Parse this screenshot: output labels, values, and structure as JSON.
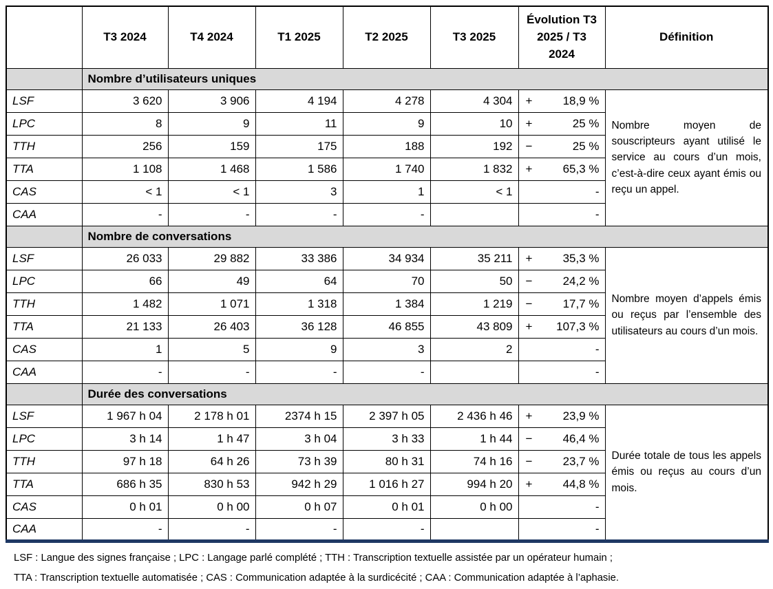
{
  "colors": {
    "band": "#D9D9D9",
    "rule": "#1F3864"
  },
  "header": {
    "columns": [
      "",
      "T3 2024",
      "T4 2024",
      "T1 2025",
      "T2 2025",
      "T3 2025",
      "Évolution T3 2025 / T3 2024",
      "Définition"
    ]
  },
  "sections": [
    {
      "title": "Nombre d’utilisateurs uniques",
      "definition": "Nombre moyen de souscripteurs ayant utilisé le service au cours d’un mois, c’est-à-dire ceux ayant émis ou reçu un appel.",
      "rows": [
        {
          "label": "LSF",
          "values": [
            "3 620",
            "3 906",
            "4 194",
            "4 278",
            "4 304"
          ],
          "evolution": {
            "sign": "+",
            "value": "18,9 %"
          }
        },
        {
          "label": "LPC",
          "values": [
            "8",
            "9",
            "11",
            "9",
            "10"
          ],
          "evolution": {
            "sign": "+",
            "value": "25 %"
          }
        },
        {
          "label": "TTH",
          "values": [
            "256",
            "159",
            "175",
            "188",
            "192"
          ],
          "evolution": {
            "sign": "−",
            "value": "25 %"
          }
        },
        {
          "label": "TTA",
          "values": [
            "1 108",
            "1 468",
            "1 586",
            "1 740",
            "1 832"
          ],
          "evolution": {
            "sign": "+",
            "value": "65,3 %"
          }
        },
        {
          "label": "CAS",
          "values": [
            "< 1",
            "< 1",
            "3",
            "1",
            "< 1"
          ],
          "evolution": {
            "sign": "",
            "value": "-"
          }
        },
        {
          "label": "CAA",
          "values": [
            "-",
            "-",
            "-",
            "-",
            ""
          ],
          "evolution": {
            "sign": "",
            "value": "-"
          }
        }
      ]
    },
    {
      "title": "Nombre de conversations",
      "definition": "Nombre moyen d’appels émis ou reçus par l’ensemble des utilisateurs au cours d’un mois.",
      "rows": [
        {
          "label": "LSF",
          "values": [
            "26 033",
            "29 882",
            "33 386",
            "34 934",
            "35 211"
          ],
          "evolution": {
            "sign": "+",
            "value": "35,3 %"
          }
        },
        {
          "label": "LPC",
          "values": [
            "66",
            "49",
            "64",
            "70",
            "50"
          ],
          "evolution": {
            "sign": "−",
            "value": "24,2 %"
          }
        },
        {
          "label": "TTH",
          "values": [
            "1 482",
            "1 071",
            "1 318",
            "1 384",
            "1 219"
          ],
          "evolution": {
            "sign": "−",
            "value": "17,7 %"
          }
        },
        {
          "label": "TTA",
          "values": [
            "21 133",
            "26 403",
            "36 128",
            "46 855",
            "43 809"
          ],
          "evolution": {
            "sign": "+",
            "value": "107,3 %"
          }
        },
        {
          "label": "CAS",
          "values": [
            "1",
            "5",
            "9",
            "3",
            "2"
          ],
          "evolution": {
            "sign": "",
            "value": "-"
          }
        },
        {
          "label": "CAA",
          "values": [
            "-",
            "-",
            "-",
            "-",
            ""
          ],
          "evolution": {
            "sign": "",
            "value": "-"
          }
        }
      ]
    },
    {
      "title": "Durée des conversations",
      "definition": "Durée totale de tous les appels émis ou reçus au cours d’un mois.",
      "rows": [
        {
          "label": "LSF",
          "values": [
            "1 967 h 04",
            "2 178 h 01",
            "2374 h 15",
            "2 397 h 05",
            "2 436 h 46"
          ],
          "evolution": {
            "sign": "+",
            "value": "23,9 %"
          }
        },
        {
          "label": "LPC",
          "values": [
            "3 h 14",
            "1 h 47",
            "3 h 04",
            "3 h 33",
            "1 h 44"
          ],
          "evolution": {
            "sign": "−",
            "value": "46,4 %"
          }
        },
        {
          "label": "TTH",
          "values": [
            "97 h 18",
            "64 h 26",
            "73 h 39",
            "80 h 31",
            "74 h 16"
          ],
          "evolution": {
            "sign": "−",
            "value": "23,7 %"
          }
        },
        {
          "label": "TTA",
          "values": [
            "686 h 35",
            "830 h 53",
            "942 h 29",
            "1 016 h 27",
            "994 h 20"
          ],
          "evolution": {
            "sign": "+",
            "value": "44,8 %"
          }
        },
        {
          "label": "CAS",
          "values": [
            "0 h 01",
            "0 h 00",
            "0 h 07",
            "0 h 01",
            "0 h 00"
          ],
          "evolution": {
            "sign": "",
            "value": "-"
          }
        },
        {
          "label": "CAA",
          "values": [
            "-",
            "-",
            "-",
            "-",
            ""
          ],
          "evolution": {
            "sign": "",
            "value": "-"
          }
        }
      ]
    }
  ],
  "footnotes": [
    "LSF : Langue des signes française ; LPC : Langage parlé complété ; TTH : Transcription textuelle assistée par un opérateur humain ;",
    "TTA : Transcription textuelle automatisée ; CAS : Communication adaptée à la surdicécité ; CAA : Communication adaptée à l’aphasie."
  ]
}
